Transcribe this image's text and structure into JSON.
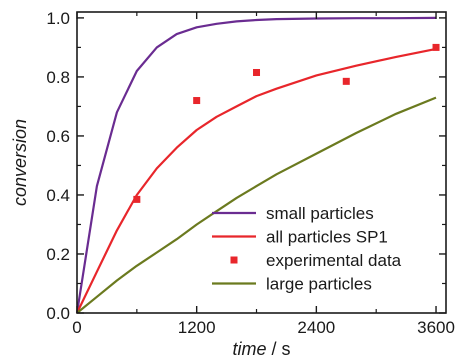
{
  "chart_data": {
    "type": "line",
    "xlabel": {
      "italic": "time",
      "rest": " / s"
    },
    "ylabel": "conversion",
    "xlim": [
      0,
      3700
    ],
    "ylim": [
      0,
      1.02
    ],
    "xticks": [
      0,
      1200,
      2400,
      3600
    ],
    "xtick_labels": [
      "0",
      "1200",
      "2400",
      "3600"
    ],
    "yticks": [
      0.0,
      0.2,
      0.4,
      0.6,
      0.8,
      1.0
    ],
    "ytick_labels": [
      "0.0",
      "0.2",
      "0.4",
      "0.6",
      "0.8",
      "1.0"
    ],
    "legend_position": "bottom-right",
    "series": [
      {
        "name": "small particles",
        "kind": "line",
        "color": "#6a2c91",
        "x": [
          0,
          200,
          400,
          600,
          800,
          1000,
          1200,
          1400,
          1600,
          1800,
          2000,
          2400,
          2800,
          3200,
          3600
        ],
        "y": [
          0,
          0.43,
          0.68,
          0.82,
          0.9,
          0.945,
          0.968,
          0.98,
          0.988,
          0.993,
          0.996,
          0.998,
          0.999,
          0.999,
          1.0
        ]
      },
      {
        "name": "all particles SP1",
        "kind": "line",
        "color": "#e8262b",
        "x": [
          0,
          200,
          400,
          600,
          800,
          1000,
          1200,
          1400,
          1600,
          1800,
          2000,
          2400,
          2800,
          3200,
          3600
        ],
        "y": [
          0,
          0.14,
          0.28,
          0.4,
          0.49,
          0.56,
          0.62,
          0.665,
          0.7,
          0.735,
          0.76,
          0.805,
          0.838,
          0.868,
          0.895
        ]
      },
      {
        "name": "experimental data",
        "kind": "scatter",
        "color": "#e8262b",
        "x": [
          600,
          1200,
          1800,
          2700,
          3600
        ],
        "y": [
          0.385,
          0.72,
          0.815,
          0.785,
          0.9
        ]
      },
      {
        "name": "large particles",
        "kind": "line",
        "color": "#6b7a1f",
        "x": [
          0,
          200,
          400,
          600,
          800,
          1000,
          1200,
          1400,
          1600,
          1800,
          2000,
          2400,
          2800,
          3200,
          3600
        ],
        "y": [
          0,
          0.055,
          0.11,
          0.16,
          0.205,
          0.25,
          0.3,
          0.345,
          0.39,
          0.43,
          0.47,
          0.54,
          0.61,
          0.675,
          0.73
        ]
      }
    ]
  }
}
